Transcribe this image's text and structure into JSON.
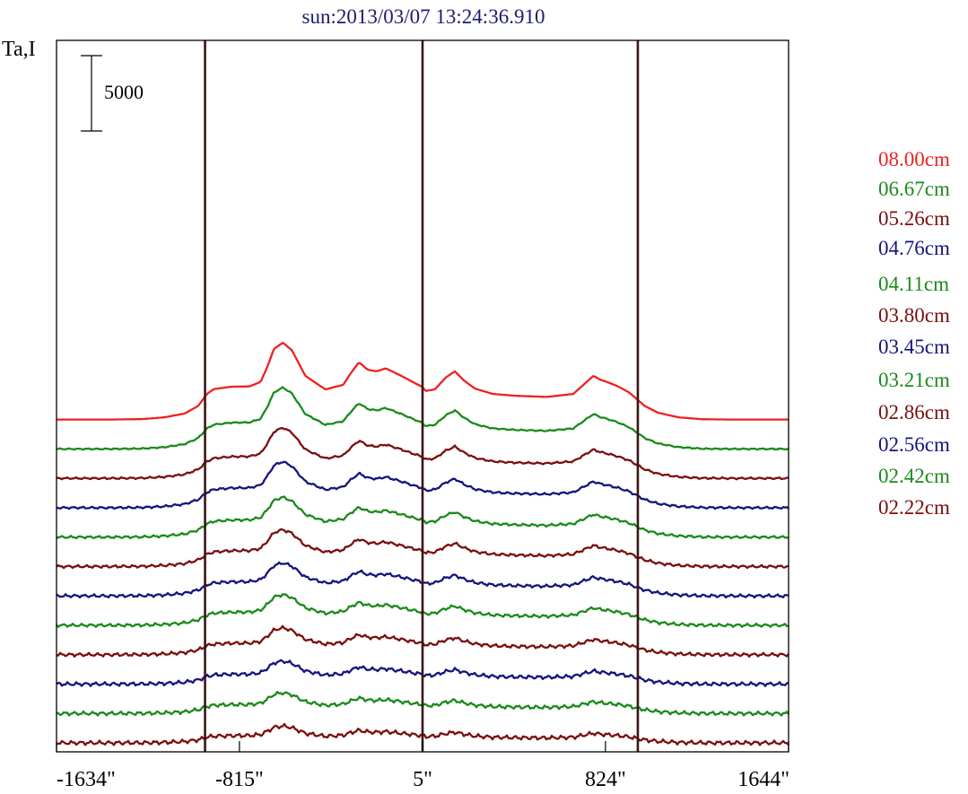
{
  "chart_data": {
    "type": "line",
    "title": "sun:2013/03/07 13:24:36.910",
    "ylabel": "Ta,I",
    "xlim": [
      -1634,
      1644
    ],
    "x_ticks": [
      {
        "value": -1634,
        "label": "-1634\""
      },
      {
        "value": -815,
        "label": "-815\""
      },
      {
        "value": 5,
        "label": "5\""
      },
      {
        "value": 824,
        "label": "824\""
      },
      {
        "value": 1644,
        "label": "1644\""
      }
    ],
    "vertical_lines": [
      -969,
      5,
      969
    ],
    "scale_bar": {
      "value": 5000,
      "label": "5000"
    },
    "stack_offset": 1950,
    "series": [
      {
        "name": "08.00cm",
        "color": "#f02020",
        "scale": 1.0,
        "noise": 0.0
      },
      {
        "name": "06.67cm",
        "color": "#1a8a1a",
        "scale": 0.8,
        "noise": 0.4
      },
      {
        "name": "05.26cm",
        "color": "#7a0f0f",
        "scale": 0.66,
        "noise": 0.6
      },
      {
        "name": "04.76cm",
        "color": "#15157e",
        "scale": 0.6,
        "noise": 0.7
      },
      {
        "name": "04.11cm",
        "color": "#1a8a1a",
        "scale": 0.52,
        "noise": 0.8
      },
      {
        "name": "03.80cm",
        "color": "#7a0f0f",
        "scale": 0.48,
        "noise": 0.9
      },
      {
        "name": "03.45cm",
        "color": "#15157e",
        "scale": 0.43,
        "noise": 1.0
      },
      {
        "name": "03.21cm",
        "color": "#1a8a1a",
        "scale": 0.4,
        "noise": 1.0
      },
      {
        "name": "02.86cm",
        "color": "#7a0f0f",
        "scale": 0.35,
        "noise": 1.1
      },
      {
        "name": "02.56cm",
        "color": "#15157e",
        "scale": 0.3,
        "noise": 1.2
      },
      {
        "name": "02.42cm",
        "color": "#1a8a1a",
        "scale": 0.27,
        "noise": 1.2
      },
      {
        "name": "02.22cm",
        "color": "#7a0f0f",
        "scale": 0.22,
        "noise": 1.3
      }
    ],
    "profile": {
      "x": [
        -1634,
        -1400,
        -1250,
        -1150,
        -1060,
        -1000,
        -960,
        -930,
        -850,
        -770,
        -720,
        -690,
        -660,
        -620,
        -580,
        -520,
        -430,
        -350,
        -320,
        -280,
        -240,
        -200,
        -160,
        -90,
        -40,
        0,
        20,
        60,
        110,
        150,
        190,
        240,
        320,
        420,
        560,
        680,
        740,
        770,
        800,
        830,
        880,
        930,
        969,
        1000,
        1060,
        1150,
        1260,
        1400,
        1644
      ],
      "y": [
        0,
        0,
        30,
        150,
        400,
        900,
        1700,
        2020,
        2180,
        2200,
        2500,
        3500,
        4700,
        5100,
        4600,
        2900,
        2000,
        2300,
        3000,
        3800,
        3300,
        3200,
        3400,
        2900,
        2500,
        2200,
        1900,
        2000,
        2800,
        3200,
        2600,
        2050,
        1700,
        1580,
        1500,
        1700,
        2500,
        2900,
        2650,
        2500,
        2200,
        1800,
        1300,
        900,
        450,
        150,
        20,
        0,
        0
      ]
    }
  },
  "legend_entries": [
    "08.00cm",
    "06.67cm",
    "05.26cm",
    "04.76cm",
    "04.11cm",
    "03.80cm",
    "03.45cm",
    "03.21cm",
    "02.86cm",
    "02.56cm",
    "02.42cm",
    "02.22cm"
  ],
  "colors": {
    "frame": "#000000",
    "vline": "#3a1616",
    "title": "#1c1c6e",
    "legend_colors": [
      "#f02020",
      "#1a8a1a",
      "#7a0f0f",
      "#15157e",
      "#1a8a1a",
      "#7a0f0f",
      "#15157e",
      "#1a8a1a",
      "#7a0f0f",
      "#15157e",
      "#1a8a1a",
      "#7a0f0f"
    ]
  }
}
